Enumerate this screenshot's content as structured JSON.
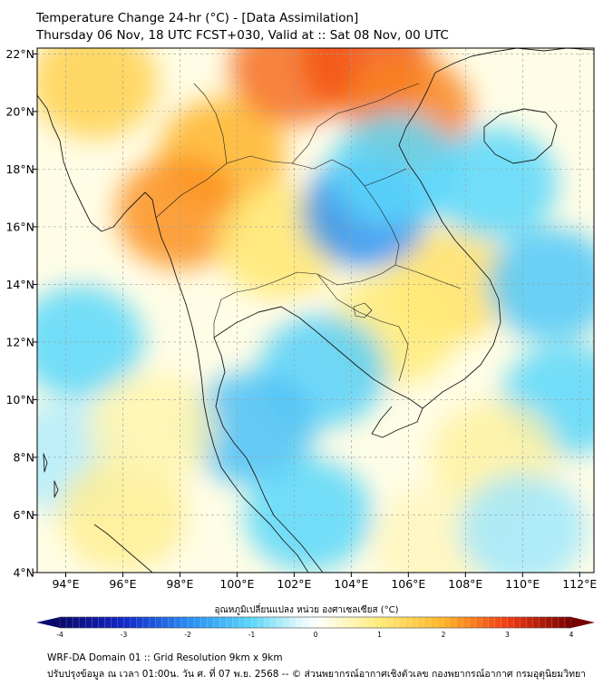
{
  "title_line1": "Temperature Change 24-hr (°C) - [Data Assimilation]",
  "title_line2": "Thursday 06 Nov, 18 UTC FCST+030, Valid at :: Sat 08 Nov, 00 UTC",
  "chart_data": {
    "type": "heatmap",
    "title": "Temperature Change 24-hr (°C) - [Data Assimilation]",
    "subtitle": "Thursday 06 Nov, 18 UTC FCST+030, Valid at :: Sat 08 Nov, 00 UTC",
    "x_ticks": [
      "94°E",
      "96°E",
      "98°E",
      "100°E",
      "102°E",
      "104°E",
      "106°E",
      "108°E",
      "110°E",
      "112°E"
    ],
    "y_ticks": [
      "22°N",
      "20°N",
      "18°N",
      "16°N",
      "14°N",
      "12°N",
      "10°N",
      "8°N",
      "6°N",
      "4°N"
    ],
    "lon_range": [
      93,
      112.5
    ],
    "lat_range": [
      4,
      22.2
    ],
    "grid": true,
    "colorbar": {
      "label": "อุณหภูมิเปลี่ยนแปลง หน่วย องศาเซลเซียส (°C)",
      "min": -4,
      "max": 4,
      "ticks": [
        "-4",
        "-3",
        "-2",
        "-1",
        "0",
        "1",
        "2",
        "3",
        "4"
      ]
    },
    "field_centers": [
      {
        "lon": 99.5,
        "lat": 18.5,
        "value": 2.0
      },
      {
        "lon": 98.0,
        "lat": 16.5,
        "value": 2.3
      },
      {
        "lon": 102.0,
        "lat": 21.5,
        "value": 2.6
      },
      {
        "lon": 104.5,
        "lat": 21.8,
        "value": 2.8
      },
      {
        "lon": 106.0,
        "lat": 20.0,
        "value": 2.4
      },
      {
        "lon": 95.0,
        "lat": 21.0,
        "value": 1.5
      },
      {
        "lon": 101.5,
        "lat": 15.5,
        "value": 1.1
      },
      {
        "lon": 107.5,
        "lat": 14.0,
        "value": 1.2
      },
      {
        "lon": 105.5,
        "lat": 12.5,
        "value": 1.0
      },
      {
        "lon": 104.5,
        "lat": 16.5,
        "value": -1.9
      },
      {
        "lon": 105.5,
        "lat": 18.0,
        "value": -1.0
      },
      {
        "lon": 109.0,
        "lat": 17.5,
        "value": -1.0
      },
      {
        "lon": 111.0,
        "lat": 14.0,
        "value": -1.2
      },
      {
        "lon": 111.5,
        "lat": 10.0,
        "value": -1.0
      },
      {
        "lon": 103.0,
        "lat": 11.0,
        "value": -1.1
      },
      {
        "lon": 100.5,
        "lat": 9.0,
        "value": -1.3
      },
      {
        "lon": 94.5,
        "lat": 12.0,
        "value": -1.0
      },
      {
        "lon": 94.0,
        "lat": 8.0,
        "value": -0.5
      },
      {
        "lon": 102.5,
        "lat": 6.0,
        "value": -1.0
      },
      {
        "lon": 96.0,
        "lat": 6.0,
        "value": 0.8
      },
      {
        "lon": 97.0,
        "lat": 9.0,
        "value": 0.6
      },
      {
        "lon": 109.0,
        "lat": 8.0,
        "value": 0.7
      },
      {
        "lon": 107.0,
        "lat": 5.0,
        "value": 0.5
      },
      {
        "lon": 110.0,
        "lat": 5.5,
        "value": -0.6
      }
    ]
  },
  "footer_line1": "WRF-DA Domain 01 :: Grid Resolution 9km x 9km",
  "footer_line2": "ปรับปรุงข้อมูล ณ เวลา 01:00น. วัน ศ. ที่ 07 พ.ย. 2568 -- © ส่วนพยากรณ์อากาศเชิงตัวเลข กองพยากรณ์อากาศ กรมอุตุนิยมวิทยา"
}
